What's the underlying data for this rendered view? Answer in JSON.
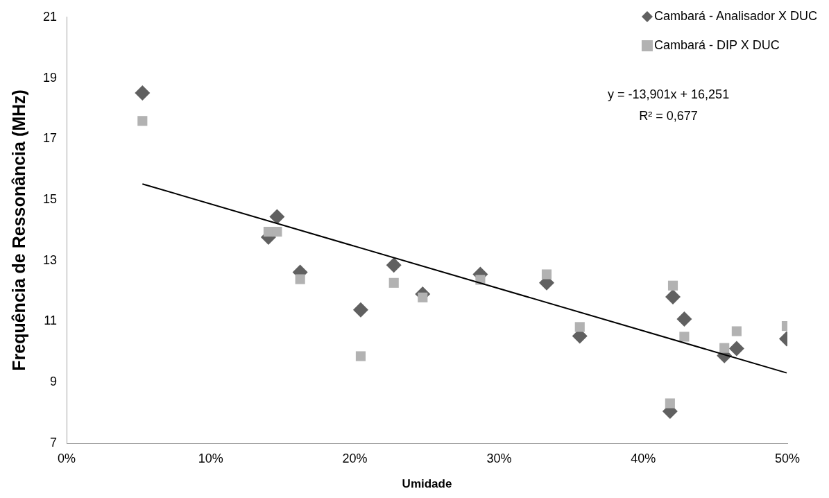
{
  "chart_data": {
    "type": "scatter",
    "xlabel": "Umidade",
    "ylabel": "Frequência de Ressonância (MHz)",
    "xlim": [
      0,
      0.5
    ],
    "xticks": [
      {
        "value": 0,
        "label": "0%"
      },
      {
        "value": 0.1,
        "label": "10%"
      },
      {
        "value": 0.2,
        "label": "20%"
      },
      {
        "value": 0.3,
        "label": "30%"
      },
      {
        "value": 0.4,
        "label": "40%"
      },
      {
        "value": 0.5,
        "label": "50%"
      }
    ],
    "ylim": [
      7,
      21
    ],
    "yticks": [
      7,
      9,
      11,
      13,
      15,
      17,
      19,
      21
    ],
    "grid": false,
    "legend": "top right",
    "annotations": [
      "y = -13,901x + 16,251",
      "R² = 0,677"
    ],
    "series": [
      {
        "name": "Cambará - Analisador X DUC",
        "color": "#606060",
        "marker": "diamond",
        "x": [
          0.0526,
          0.14,
          0.146,
          0.162,
          0.204,
          0.227,
          0.247,
          0.287,
          0.333,
          0.356,
          0.4206,
          0.4186,
          0.4285,
          0.4563,
          0.4648,
          0.4995
        ],
        "values": [
          18.51,
          13.77,
          14.44,
          12.62,
          11.38,
          12.85,
          11.9,
          12.55,
          12.27,
          10.52,
          11.81,
          8.05,
          11.08,
          9.88,
          10.11,
          10.43
        ]
      },
      {
        "name": "Cambará - DIP X DUC",
        "color": "#b2b2b2",
        "marker": "square",
        "x": [
          0.0526,
          0.14,
          0.146,
          0.162,
          0.204,
          0.227,
          0.247,
          0.287,
          0.333,
          0.356,
          0.4206,
          0.4186,
          0.4285,
          0.4563,
          0.4648,
          0.4995
        ],
        "values": [
          17.59,
          13.95,
          13.95,
          12.39,
          9.86,
          12.27,
          11.79,
          12.37,
          12.55,
          10.82,
          12.18,
          8.31,
          10.5,
          10.13,
          10.68,
          10.85
        ]
      },
      {
        "type": "line",
        "color": "#000000",
        "marker": "none",
        "line_style": "solid",
        "x": [
          0.0526,
          0.4995
        ],
        "values": [
          15.52,
          9.31
        ]
      }
    ]
  }
}
